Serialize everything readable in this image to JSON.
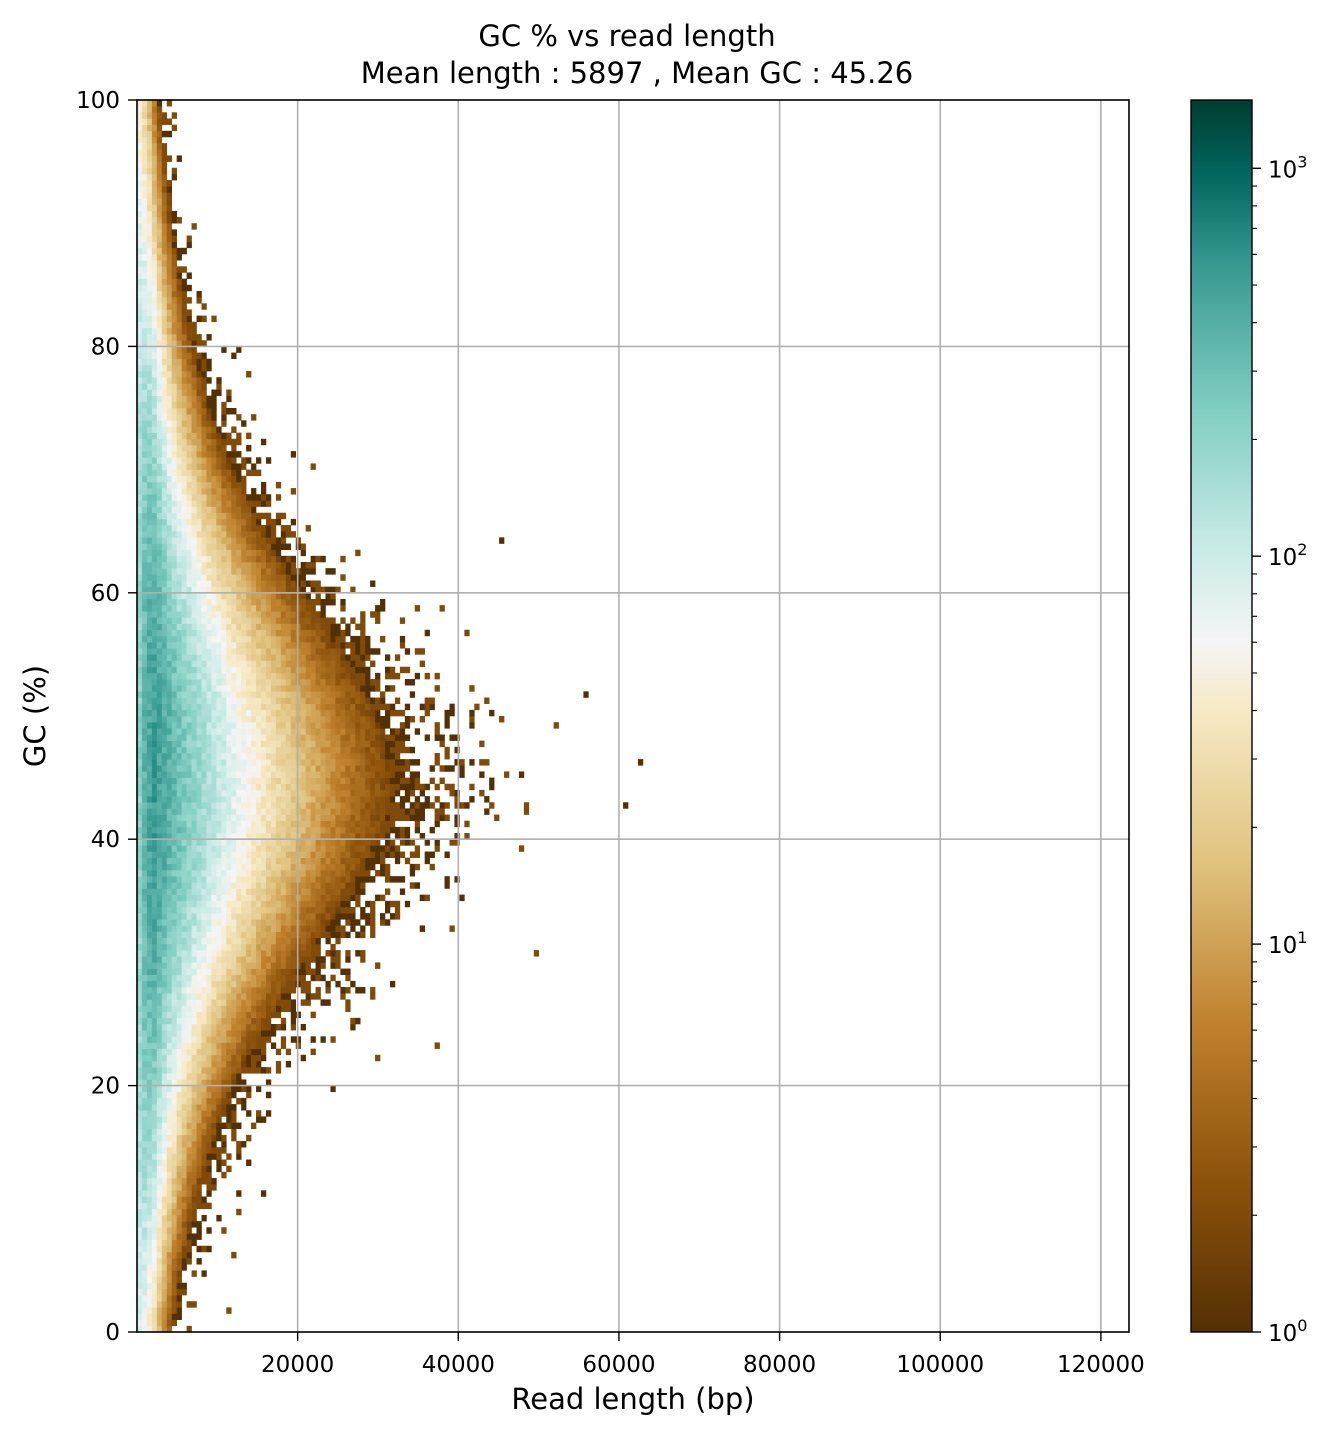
{
  "chart_data": {
    "type": "heatmap",
    "title": "GC % vs read length",
    "subtitle": "Mean length : 5897 , Mean GC : 45.26",
    "xlabel": "Read length (bp)",
    "ylabel": "GC (%)",
    "xlim": [
      0,
      123500
    ],
    "ylim": [
      0,
      100
    ],
    "x_ticks": [
      20000,
      40000,
      60000,
      80000,
      100000,
      120000
    ],
    "y_ticks": [
      0,
      20,
      40,
      60,
      80,
      100
    ],
    "grid": true,
    "colormap": "BrBG",
    "color_scale": "log",
    "colorbar": {
      "range": [
        1,
        1500
      ],
      "ticks": [
        {
          "base": "10",
          "exp": "0"
        },
        {
          "base": "10",
          "exp": "1"
        },
        {
          "base": "10",
          "exp": "2"
        },
        {
          "base": "10",
          "exp": "3"
        }
      ]
    },
    "density_model": {
      "mean_length": 5897,
      "mean_gc": 45.26,
      "peak_count": 1500,
      "bins_x": 200,
      "bins_y": 200
    }
  }
}
